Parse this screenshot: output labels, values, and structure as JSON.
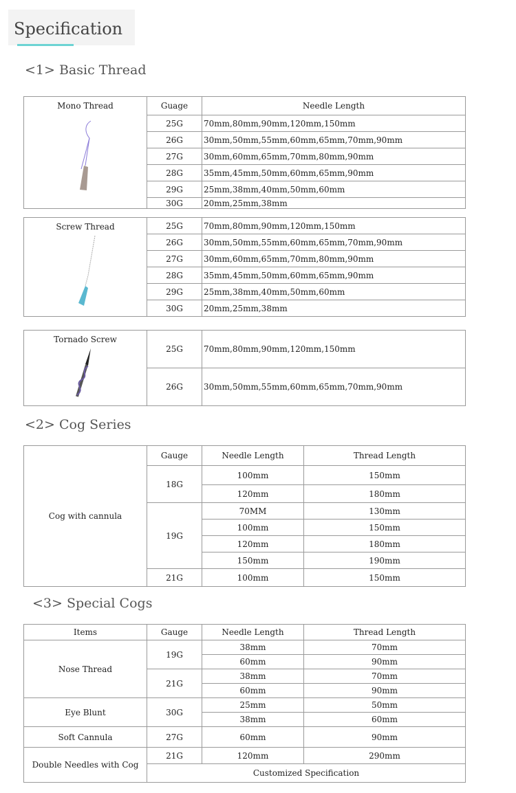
{
  "title": "Specification",
  "sections": {
    "basic": "<1> Basic Thread",
    "cog": "<2> Cog Series",
    "special": "<3> Special Cogs"
  },
  "basic": {
    "gauge_header": "Guage",
    "length_header": "Needle Length",
    "mono": {
      "name": "Mono Thread",
      "rows": [
        [
          "25G",
          "70mm,80mm,90mm,120mm,150mm"
        ],
        [
          "26G",
          "30mm,50mm,55mm,60mm,65mm,70mm,90mm"
        ],
        [
          "27G",
          "30mm,60mm,65mm,70mm,80mm,90mm"
        ],
        [
          "28G",
          "35mm,45mm,50mm,60mm,65mm,90mm"
        ],
        [
          "29G",
          "25mm,38mm,40mm,50mm,60mm"
        ],
        [
          "30G",
          "20mm,25mm,38mm"
        ]
      ]
    },
    "screw": {
      "name": "Screw Thread",
      "rows": [
        [
          "25G",
          "70mm,80mm,90mm,120mm,150mm"
        ],
        [
          "26G",
          "30mm,50mm,55mm,60mm,65mm,70mm,90mm"
        ],
        [
          "27G",
          "30mm,60mm,65mm,70mm,80mm,90mm"
        ],
        [
          "28G",
          "35mm,45mm,50mm,60mm,65mm,90mm"
        ],
        [
          "29G",
          "25mm,38mm,40mm,50mm,60mm"
        ],
        [
          "30G",
          "20mm,25mm,38mm"
        ]
      ]
    },
    "tornado": {
      "name": "Tornado Screw",
      "rows": [
        [
          "25G",
          "70mm,80mm,90mm,120mm,150mm"
        ],
        [
          "26G",
          "30mm,50mm,55mm,60mm,65mm,70mm,90mm"
        ]
      ]
    }
  },
  "cog": {
    "headers": [
      "Gauge",
      "Needle Length",
      "Thread Length"
    ],
    "item": "Cog with cannula",
    "groups": [
      {
        "gauge": "18G",
        "rows": [
          [
            "100mm",
            "150mm"
          ],
          [
            "120mm",
            "180mm"
          ]
        ]
      },
      {
        "gauge": "19G",
        "rows": [
          [
            "70MM",
            "130mm"
          ],
          [
            "100mm",
            "150mm"
          ],
          [
            "120mm",
            "180mm"
          ],
          [
            "150mm",
            "190mm"
          ]
        ]
      },
      {
        "gauge": "21G",
        "rows": [
          [
            "100mm",
            "150mm"
          ]
        ]
      }
    ]
  },
  "special": {
    "headers": [
      "Items",
      "Gauge",
      "Needle Length",
      "Thread Length"
    ],
    "nose": {
      "name": "Nose Thread",
      "g1": "19G",
      "g2": "21G",
      "rows": [
        [
          "38mm",
          "70mm"
        ],
        [
          "60mm",
          "90mm"
        ],
        [
          "38mm",
          "70mm"
        ],
        [
          "60mm",
          "90mm"
        ]
      ]
    },
    "eye": {
      "name": "Eye Blunt",
      "gauge": "30G",
      "rows": [
        [
          "25mm",
          "50mm"
        ],
        [
          "38mm",
          "60mm"
        ]
      ]
    },
    "soft": {
      "name": "Soft Cannula",
      "gauge": "27G",
      "row": [
        "60mm",
        "90mm"
      ]
    },
    "double": {
      "name": "Double Needles with Cog",
      "gauge": "21G",
      "row": [
        "120mm",
        "290mm"
      ],
      "custom": "Customized Specification"
    }
  }
}
